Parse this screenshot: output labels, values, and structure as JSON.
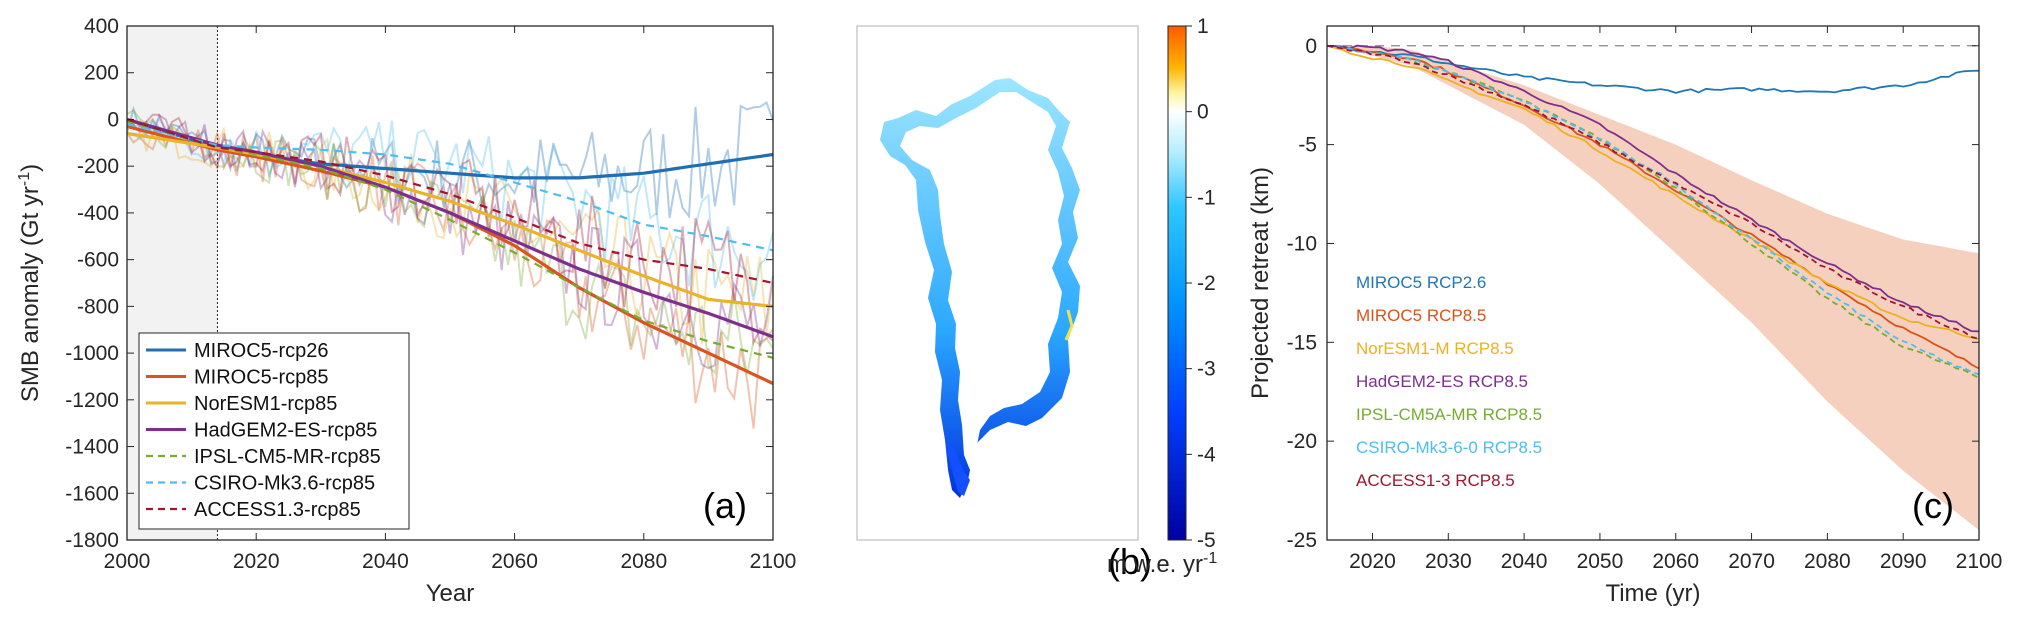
{
  "panel_a": {
    "label": "(a)",
    "ylabel": "SMB anomaly (Gt yr",
    "ylabel_sup": "-1",
    "ylabel_close": ")",
    "xlabel": "Year",
    "xticks": [
      "2000",
      "2020",
      "2040",
      "2060",
      "2080",
      "2100"
    ],
    "yticks": [
      "400",
      "200",
      "0",
      "-200",
      "-400",
      "-600",
      "-800",
      "-1000",
      "-1200",
      "-1400",
      "-1600",
      "-1800"
    ],
    "legend": [
      {
        "name": "MIROC5-rcp26",
        "color": "#1f6fb2",
        "dash": false
      },
      {
        "name": "MIROC5-rcp85",
        "color": "#d9541e",
        "dash": false
      },
      {
        "name": "NorESM1-rcp85",
        "color": "#e9b32a",
        "dash": false
      },
      {
        "name": "HadGEM2-ES-rcp85",
        "color": "#7e2f8e",
        "dash": false
      },
      {
        "name": "IPSL-CM5-MR-rcp85",
        "color": "#77ac30",
        "dash": true
      },
      {
        "name": "CSIRO-Mk3.6-rcp85",
        "color": "#4dbeee",
        "dash": true
      },
      {
        "name": "ACCESS1.3-rcp85",
        "color": "#a2142f",
        "dash": true
      }
    ]
  },
  "panel_b": {
    "label": "(b)",
    "colorbar_ticks": [
      "1",
      "0",
      "-1",
      "-2",
      "-3",
      "-4",
      "-5"
    ],
    "colorbar_label": "m w.e. yr",
    "colorbar_label_sup": "-1"
  },
  "panel_c": {
    "label": "(c)",
    "ylabel": "Projected retreat (km)",
    "xlabel": "Time (yr)",
    "xticks": [
      "2020",
      "2030",
      "2040",
      "2050",
      "2060",
      "2070",
      "2080",
      "2090",
      "2100"
    ],
    "yticks": [
      "0",
      "-5",
      "-10",
      "-15",
      "-20",
      "-25"
    ],
    "legend": [
      {
        "name": "MIROC5 RCP2.6",
        "color": "#1f77b4"
      },
      {
        "name": "MIROC5 RCP8.5",
        "color": "#d95319"
      },
      {
        "name": "NorESM1-M RCP8.5",
        "color": "#edb120"
      },
      {
        "name": "HadGEM2-ES RCP8.5",
        "color": "#7e2f8e"
      },
      {
        "name": "IPSL-CM5A-MR RCP8.5",
        "color": "#77ac30"
      },
      {
        "name": "CSIRO-Mk3-6-0 RCP8.5",
        "color": "#4dbeee"
      },
      {
        "name": "ACCESS1-3 RCP8.5",
        "color": "#a2142f"
      }
    ]
  },
  "chart_data": [
    {
      "type": "line",
      "title": "",
      "xlabel": "Year",
      "ylabel": "SMB anomaly (Gt yr-1)",
      "xlim": [
        2000,
        2100
      ],
      "ylim": [
        -1800,
        400
      ],
      "grid": false,
      "legend_position": "bottom-left",
      "shaded_period": [
        2000,
        2014
      ],
      "x": [
        2000,
        2014,
        2020,
        2030,
        2040,
        2050,
        2060,
        2070,
        2080,
        2090,
        2100
      ],
      "series": [
        {
          "name": "MIROC5-rcp26",
          "values": [
            0,
            -120,
            -150,
            -190,
            -210,
            -230,
            -250,
            -250,
            -230,
            -190,
            -150
          ]
        },
        {
          "name": "MIROC5-rcp85",
          "values": [
            -30,
            -130,
            -160,
            -220,
            -290,
            -400,
            -540,
            -720,
            -870,
            -1000,
            -1130
          ]
        },
        {
          "name": "NorESM1-rcp85",
          "values": [
            -60,
            -120,
            -150,
            -200,
            -270,
            -350,
            -450,
            -560,
            -670,
            -770,
            -800
          ]
        },
        {
          "name": "HadGEM2-ES-rcp85",
          "values": [
            0,
            -110,
            -140,
            -200,
            -290,
            -400,
            -520,
            -640,
            -740,
            -830,
            -930
          ]
        },
        {
          "name": "IPSL-CM5-MR-rcp85",
          "values": [
            -10,
            -120,
            -150,
            -210,
            -300,
            -430,
            -570,
            -720,
            -860,
            -950,
            -1020
          ]
        },
        {
          "name": "CSIRO-Mk3.6-rcp85",
          "values": [
            -20,
            -110,
            -120,
            -130,
            -150,
            -190,
            -270,
            -350,
            -450,
            -500,
            -560
          ]
        },
        {
          "name": "ACCESS1.3-rcp85",
          "values": [
            0,
            -120,
            -140,
            -180,
            -240,
            -320,
            -420,
            -530,
            -600,
            -640,
            -700
          ]
        }
      ]
    },
    {
      "type": "line",
      "title": "",
      "xlabel": "Time (yr)",
      "ylabel": "Projected retreat (km)",
      "xlim": [
        2014,
        2100
      ],
      "ylim": [
        -25,
        1
      ],
      "grid": false,
      "legend_position": "left",
      "reference_line": 0,
      "x": [
        2014,
        2020,
        2025,
        2030,
        2040,
        2050,
        2060,
        2070,
        2080,
        2090,
        2100
      ],
      "uncertainty_band": {
        "upper": [
          0,
          0,
          -0.2,
          -0.8,
          -2.0,
          -3.5,
          -5.0,
          -6.8,
          -8.5,
          -9.8,
          -10.5
        ],
        "lower": [
          0,
          -0.5,
          -1.0,
          -2.0,
          -4.0,
          -7.0,
          -10.5,
          -14.0,
          -18.0,
          -21.5,
          -24.5
        ]
      },
      "series": [
        {
          "name": "MIROC5 RCP2.6",
          "values": [
            0,
            -0.3,
            -0.5,
            -0.9,
            -1.6,
            -2.0,
            -2.3,
            -2.2,
            -2.3,
            -2.0,
            -1.2
          ]
        },
        {
          "name": "MIROC5 RCP8.5",
          "values": [
            0,
            -0.3,
            -0.6,
            -1.3,
            -3.0,
            -5.0,
            -7.3,
            -9.6,
            -12.0,
            -14.3,
            -16.3
          ]
        },
        {
          "name": "NorESM1-M RCP8.5",
          "values": [
            0,
            -0.6,
            -1.0,
            -1.8,
            -3.2,
            -5.3,
            -7.6,
            -9.8,
            -12.0,
            -13.8,
            -14.8
          ]
        },
        {
          "name": "HadGEM2-ES RCP8.5",
          "values": [
            0,
            -0.1,
            -0.3,
            -0.8,
            -2.3,
            -4.0,
            -6.5,
            -8.8,
            -11.0,
            -13.0,
            -14.5
          ]
        },
        {
          "name": "IPSL-CM5A-MR RCP8.5",
          "values": [
            0,
            -0.4,
            -0.7,
            -1.3,
            -2.8,
            -4.7,
            -7.2,
            -10.0,
            -12.8,
            -15.2,
            -16.8
          ]
        },
        {
          "name": "CSIRO-Mk3-6-0 RCP8.5",
          "values": [
            0,
            -0.3,
            -0.7,
            -1.3,
            -2.8,
            -4.7,
            -7.0,
            -9.8,
            -12.5,
            -15.0,
            -16.7
          ]
        },
        {
          "name": "ACCESS1-3 RCP8.5",
          "values": [
            0,
            -0.4,
            -0.8,
            -1.5,
            -3.0,
            -4.9,
            -7.0,
            -9.0,
            -11.3,
            -13.2,
            -14.8
          ]
        }
      ]
    }
  ]
}
